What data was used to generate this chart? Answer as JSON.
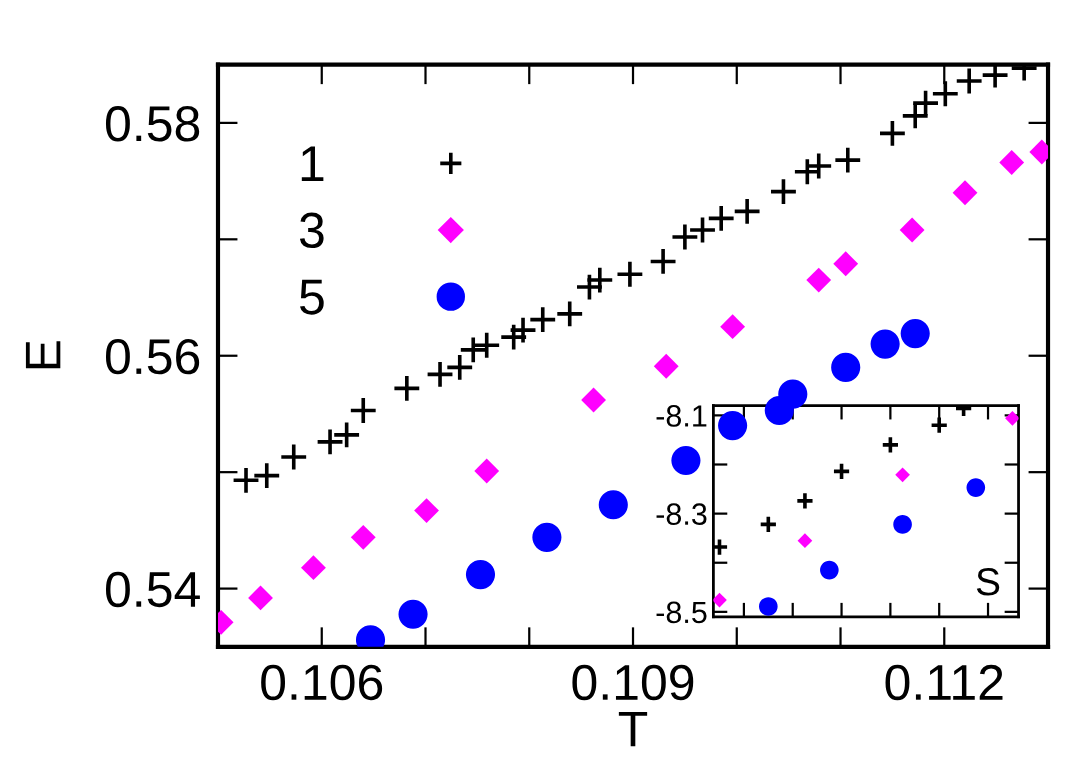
{
  "chart_data": [
    {
      "type": "scatter",
      "xlabel": "T",
      "ylabel": "E",
      "xlim": [
        0.105,
        0.113
      ],
      "ylim": [
        0.535,
        0.585
      ],
      "xticks": [
        {
          "value": 0.106,
          "label": "0.106"
        },
        {
          "value": 0.107,
          "label": null
        },
        {
          "value": 0.108,
          "label": null
        },
        {
          "value": 0.109,
          "label": "0.109"
        },
        {
          "value": 0.11,
          "label": null
        },
        {
          "value": 0.111,
          "label": null
        },
        {
          "value": 0.112,
          "label": "0.112"
        }
      ],
      "yticks": [
        {
          "value": 0.54,
          "label": "0.54"
        },
        {
          "value": 0.55,
          "label": null
        },
        {
          "value": 0.56,
          "label": "0.56"
        },
        {
          "value": 0.57,
          "label": null
        },
        {
          "value": 0.58,
          "label": "0.58"
        }
      ],
      "grid": false,
      "legend": "top left",
      "series": [
        {
          "name": "1",
          "color": "#000000",
          "marker": "cross",
          "x": [
            0.10527,
            0.10547,
            0.10573,
            0.10608,
            0.10624,
            0.1064,
            0.10682,
            0.10714,
            0.10733,
            0.10746,
            0.10759,
            0.10785,
            0.10794,
            0.10813,
            0.10839,
            0.10858,
            0.10868,
            0.10897,
            0.10929,
            0.1095,
            0.10967,
            0.10985,
            0.1101,
            0.11045,
            0.11068,
            0.11079,
            0.11107,
            0.1115,
            0.11172,
            0.11182,
            0.11201,
            0.11224,
            0.11249,
            0.11277
          ],
          "values": [
            0.5493,
            0.5497,
            0.5513,
            0.5526,
            0.5532,
            0.5553,
            0.5572,
            0.5584,
            0.559,
            0.5605,
            0.5609,
            0.5616,
            0.5622,
            0.5631,
            0.5636,
            0.5659,
            0.5665,
            0.567,
            0.5681,
            0.5702,
            0.5708,
            0.5718,
            0.5724,
            0.5741,
            0.5758,
            0.5763,
            0.5768,
            0.5791,
            0.5806,
            0.5817,
            0.5825,
            0.5836,
            0.5841,
            0.5847
          ]
        },
        {
          "name": "3",
          "color": "#ff00ff",
          "marker": "diamond",
          "x": [
            0.10503,
            0.10541,
            0.10592,
            0.1064,
            0.10701,
            0.10759,
            0.10862,
            0.10932,
            0.10996,
            0.11079,
            0.11105,
            0.11169,
            0.1122,
            0.11265,
            0.11294
          ],
          "values": [
            0.5371,
            0.5392,
            0.5418,
            0.5444,
            0.5467,
            0.5501,
            0.5562,
            0.5591,
            0.5625,
            0.5665,
            0.5679,
            0.5708,
            0.574,
            0.5766,
            0.5775
          ]
        },
        {
          "name": "5",
          "color": "#0000ff",
          "marker": "circle",
          "x": [
            0.10647,
            0.10688,
            0.10753,
            0.10817,
            0.10881,
            0.10951,
            0.10996,
            0.11041,
            0.11054,
            0.11105,
            0.11143,
            0.11172
          ],
          "values": [
            0.5356,
            0.5378,
            0.5412,
            0.5444,
            0.5472,
            0.551,
            0.554,
            0.5553,
            0.5567,
            0.559,
            0.561,
            0.5619
          ]
        }
      ]
    },
    {
      "type": "scatter",
      "tick_labels": "y",
      "annotations": [
        "S"
      ],
      "ylim": [
        -8.51,
        -8.08
      ],
      "categories": [
        null,
        null,
        null,
        null,
        null,
        null,
        null,
        null,
        null,
        null,
        null,
        null,
        null,
        null,
        null,
        null,
        null,
        null,
        null,
        null,
        null,
        null,
        null,
        null,
        null
      ],
      "yticks": [
        -8.1,
        {
          "value": -8.2,
          "label": null
        },
        -8.3,
        {
          "value": -8.4,
          "label": null
        },
        -8.5
      ],
      "grid": false,
      "series": [
        {
          "color": "#000000",
          "marker": "cross",
          "values": [
            -8.368,
            null,
            null,
            null,
            -8.322,
            null,
            null,
            -8.274,
            null,
            null,
            -8.214,
            null,
            null,
            null,
            -8.16,
            null,
            null,
            null,
            -8.12,
            null,
            -8.086,
            null,
            null,
            null,
            null
          ]
        },
        {
          "color": "#ff00ff",
          "marker": "diamond",
          "values": [
            -8.476,
            null,
            null,
            null,
            null,
            null,
            null,
            -8.355,
            null,
            null,
            null,
            null,
            null,
            null,
            null,
            -8.221,
            null,
            null,
            null,
            null,
            null,
            null,
            null,
            null,
            -8.106
          ]
        },
        {
          "color": "#0000ff",
          "marker": "circle",
          "values": [
            null,
            null,
            null,
            null,
            -8.489,
            null,
            null,
            null,
            null,
            -8.415,
            null,
            null,
            null,
            null,
            null,
            -8.322,
            null,
            null,
            null,
            null,
            null,
            -8.247,
            null,
            null,
            null
          ]
        }
      ]
    }
  ]
}
